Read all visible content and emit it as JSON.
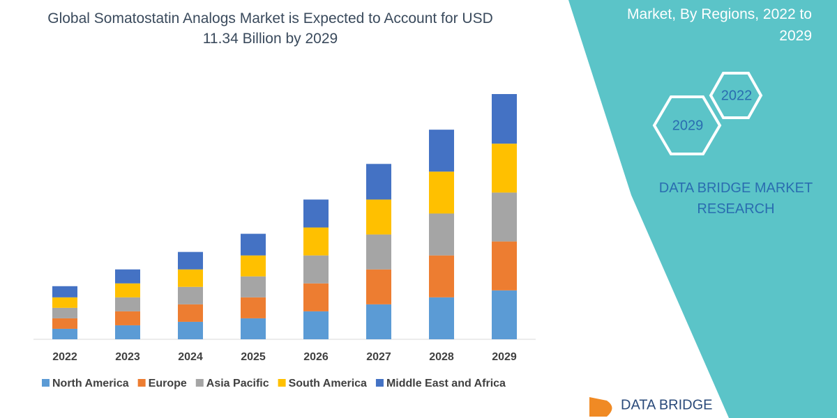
{
  "chart_data": {
    "type": "stacked_bar",
    "title": "Global Somatostatin Analogs Market is Expected to Account for USD 11.34 Billion by 2029",
    "categories": [
      "2022",
      "2023",
      "2024",
      "2025",
      "2026",
      "2027",
      "2028",
      "2029"
    ],
    "series": [
      {
        "name": "North America",
        "color": "#5b9bd5",
        "values": [
          15,
          20,
          25,
          30,
          40,
          50,
          60,
          70
        ]
      },
      {
        "name": "Europe",
        "color": "#ed7d31",
        "values": [
          15,
          20,
          25,
          30,
          40,
          50,
          60,
          70
        ]
      },
      {
        "name": "Asia Pacific",
        "color": "#a5a5a5",
        "values": [
          15,
          20,
          25,
          30,
          40,
          50,
          60,
          70
        ]
      },
      {
        "name": "South America",
        "color": "#ffc000",
        "values": [
          15,
          20,
          25,
          30,
          40,
          50,
          60,
          70
        ]
      },
      {
        "name": "Middle East and Africa",
        "color": "#4472c4",
        "values": [
          16,
          20,
          25,
          31,
          40,
          51,
          60,
          71
        ]
      }
    ]
  },
  "side_panel": {
    "heading": "Market, By Regions, 2022 to 2029",
    "hex_labels": [
      "2022",
      "2029"
    ],
    "brand": "DATA BRIDGE MARKET RESEARCH"
  },
  "footer_logo": "DATA BRIDGE"
}
